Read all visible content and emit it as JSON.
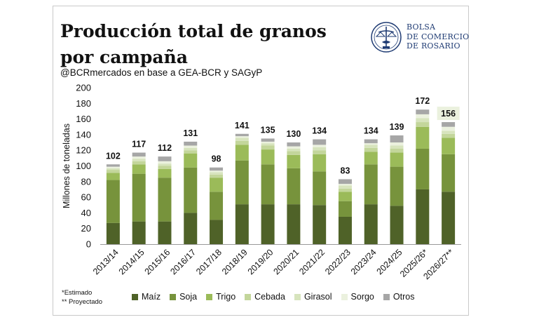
{
  "header": {
    "title": "Producción total de granos por campaña",
    "subtitle": "@BCRmercados en base a GEA-BCR y SAGyP"
  },
  "logo": {
    "line1": "BOLSA",
    "line2": "DE COMERCIO",
    "line3": "DE ROSARIO",
    "icon": "bcr-emblem-icon"
  },
  "footnotes": {
    "estimado": "*Estimado",
    "proyectado": "** Proyectado"
  },
  "colors": {
    "maiz": "#4f6228",
    "soja": "#77933c",
    "trigo": "#9bbb59",
    "cebada": "#c3d69b",
    "girasol": "#d7e4bd",
    "sorgo": "#ebf1de",
    "otros": "#a6a6a6",
    "highlight": "#ebf1de"
  },
  "chart_data": {
    "type": "bar",
    "stacked": true,
    "ylabel": "Millones de toneladas",
    "xlabel": "",
    "ylim": [
      0,
      200
    ],
    "yticks": [
      0,
      20,
      40,
      60,
      80,
      100,
      120,
      140,
      160,
      180,
      200
    ],
    "grid": false,
    "legend_position": "bottom",
    "categories": [
      "2013/14",
      "2014/15",
      "2015/16",
      "2016/17",
      "2017/18",
      "2018/19",
      "2019/20",
      "2020/21",
      "2021/22",
      "2022/23",
      "2023/24",
      "2024/25",
      "2025/26*",
      "2026/27**"
    ],
    "totals": [
      102,
      117,
      112,
      131,
      98,
      141,
      135,
      130,
      134,
      83,
      134,
      139,
      172,
      156
    ],
    "total_labels": [
      "102",
      "117",
      "112",
      "131",
      "98",
      "141",
      "135",
      "130",
      "134",
      "83",
      "134",
      "139",
      "172",
      "156"
    ],
    "highlighted_total_index": 13,
    "series": [
      {
        "name": "Maíz",
        "values": [
          27,
          29,
          29,
          40,
          31,
          51,
          51,
          51,
          50,
          35,
          51,
          49,
          70,
          67
        ]
      },
      {
        "name": "Soja",
        "values": [
          55,
          61,
          56,
          58,
          36,
          56,
          51,
          46,
          43,
          20,
          51,
          50,
          52,
          48
        ]
      },
      {
        "name": "Trigo",
        "values": [
          9,
          12,
          11,
          18,
          18,
          20,
          19,
          17,
          22,
          12,
          16,
          18,
          28,
          21
        ]
      },
      {
        "name": "Cebada",
        "values": [
          4,
          4,
          4,
          4,
          4,
          5,
          5,
          5,
          5,
          4,
          5,
          5,
          6,
          5
        ]
      },
      {
        "name": "Girasol",
        "values": [
          2,
          3,
          3,
          3,
          3,
          4,
          3,
          3,
          4,
          4,
          4,
          4,
          5,
          4
        ]
      },
      {
        "name": "Sorgo",
        "values": [
          2,
          3,
          3,
          3,
          2,
          2,
          2,
          3,
          3,
          2,
          2,
          4,
          5,
          5
        ]
      },
      {
        "name": "Otros",
        "values": [
          3,
          5,
          6,
          5,
          4,
          3,
          4,
          5,
          7,
          6,
          5,
          9,
          6,
          6
        ]
      }
    ]
  }
}
